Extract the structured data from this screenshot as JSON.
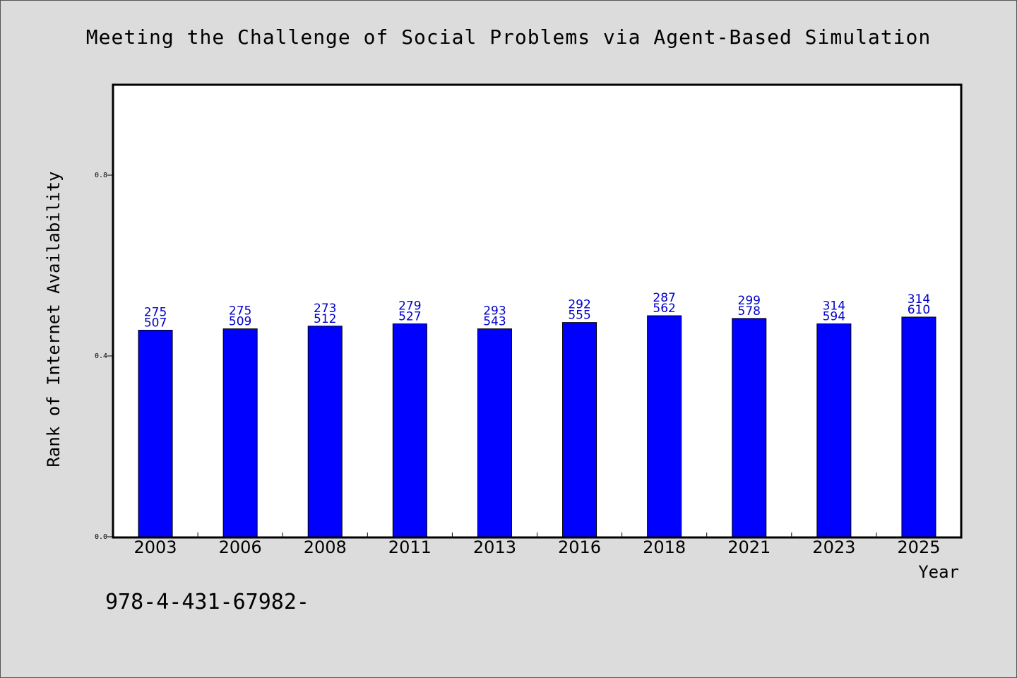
{
  "chart_data": {
    "type": "bar",
    "title": "Meeting the Challenge of Social Problems via Agent-Based Simulation",
    "xlabel": "Year",
    "ylabel": "Rank of Internet Availability",
    "categories": [
      "2003",
      "2006",
      "2008",
      "2011",
      "2013",
      "2016",
      "2018",
      "2021",
      "2023",
      "2025"
    ],
    "series": [
      {
        "values": [
          0.457,
          0.46,
          0.466,
          0.471,
          0.46,
          0.474,
          0.489,
          0.483,
          0.471,
          0.486
        ]
      }
    ],
    "data_labels": {
      "top": [
        "275",
        "275",
        "273",
        "279",
        "293",
        "292",
        "287",
        "299",
        "314",
        "314"
      ],
      "bottom": [
        "507",
        "509",
        "512",
        "527",
        "543",
        "555",
        "562",
        "578",
        "594",
        "610"
      ]
    },
    "ylim": [
      0.0,
      1.0
    ],
    "yticks": [
      0.0,
      0.4,
      0.8
    ],
    "ytick_labels": [
      "0.0",
      "0.4",
      "0.8"
    ],
    "grid": false,
    "legend": "none",
    "colors": {
      "bar": "#0000ff",
      "label": "#0000cc",
      "background": "#dcdcdc",
      "plot_background": "#ffffff"
    }
  },
  "footer_text": "978-4-431-67982-"
}
